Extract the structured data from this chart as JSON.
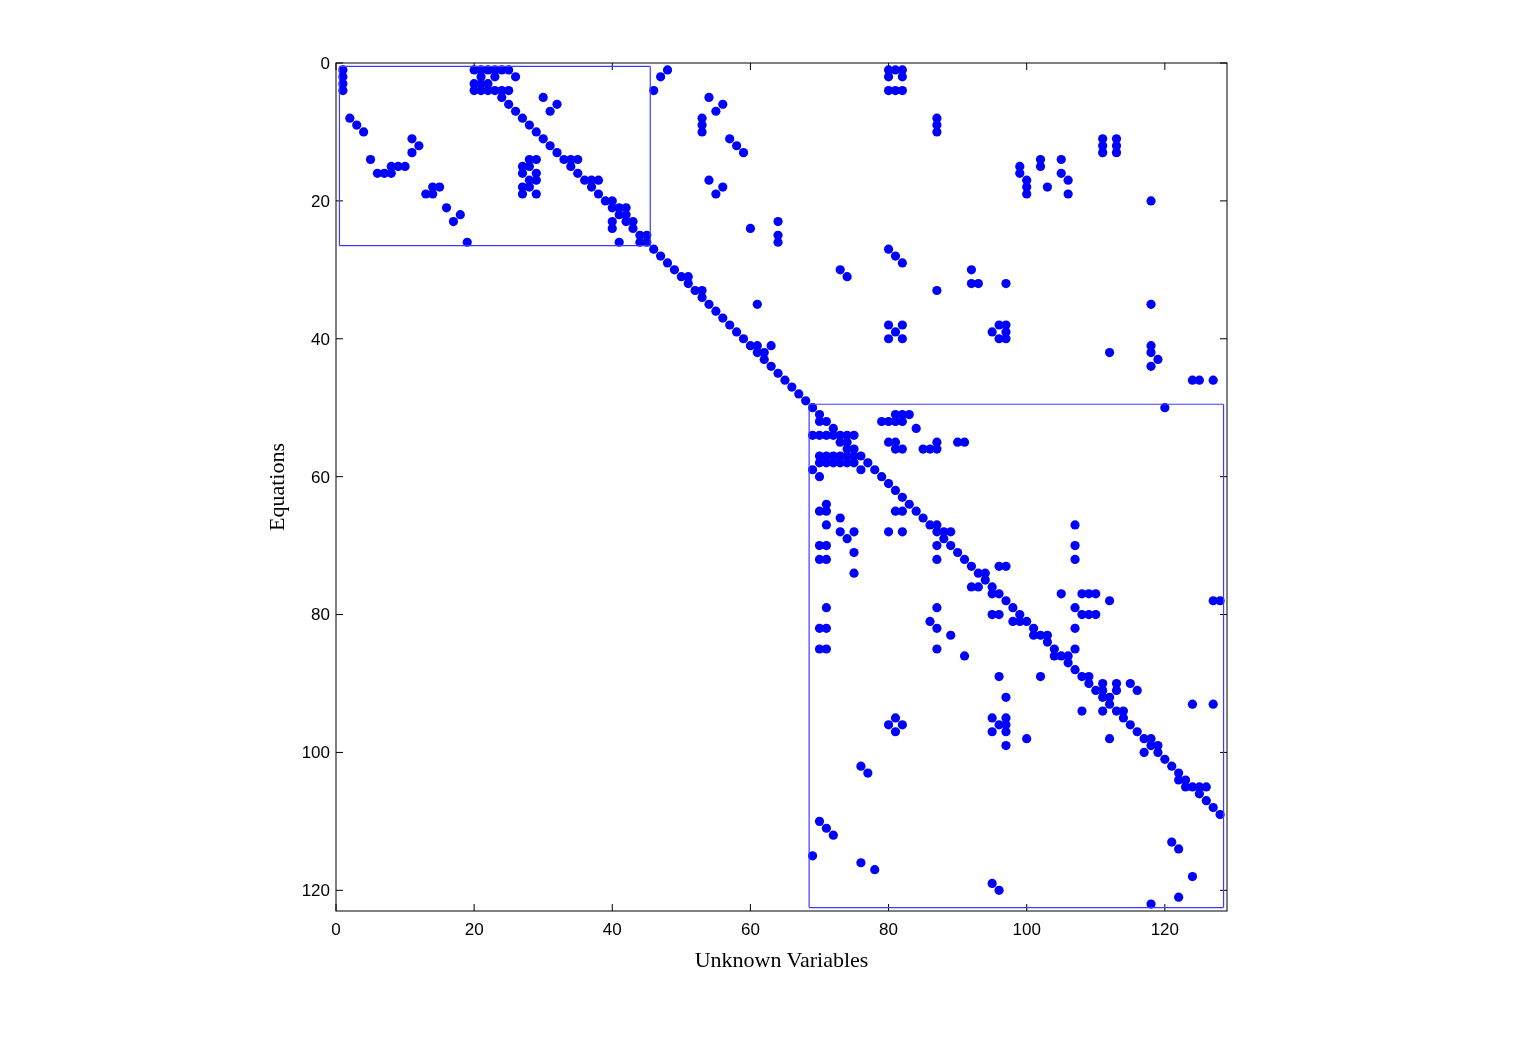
{
  "chart_data": {
    "type": "scatter",
    "xlabel": "Unknown Variables",
    "ylabel": "Equations",
    "xlim": [
      0,
      129
    ],
    "ylim": [
      123,
      0
    ],
    "xticks": [
      0,
      20,
      40,
      60,
      80,
      100,
      120
    ],
    "yticks": [
      0,
      20,
      40,
      60,
      80,
      100,
      120
    ],
    "series": [
      {
        "type": "scatter",
        "color": "#0000ff",
        "marker": "circle",
        "x": [
          1,
          20,
          21,
          22,
          23,
          24,
          25,
          48,
          80,
          81,
          82,
          1,
          21,
          23,
          26,
          47,
          80,
          82,
          1,
          20,
          21,
          22,
          1,
          20,
          21,
          22,
          23,
          24,
          25,
          46,
          80,
          81,
          82,
          24,
          30,
          54,
          25,
          32,
          56,
          26,
          31,
          55,
          2,
          27,
          53,
          87,
          3,
          28,
          53,
          87,
          4,
          29,
          53,
          87,
          11,
          30,
          57,
          111,
          113,
          12,
          31,
          58,
          111,
          113,
          11,
          32,
          59,
          111,
          113,
          5,
          28,
          29,
          33,
          34,
          35,
          102,
          105,
          8,
          9,
          10,
          27,
          28,
          34,
          99,
          102,
          6,
          7,
          8,
          27,
          29,
          35,
          99,
          105,
          28,
          29,
          36,
          37,
          38,
          54,
          100,
          106,
          14,
          15,
          27,
          28,
          37,
          56,
          100,
          103,
          13,
          14,
          27,
          29,
          38,
          55,
          100,
          106,
          39,
          40,
          118,
          16,
          40,
          41,
          42,
          18,
          41,
          42,
          17,
          40,
          42,
          43,
          64,
          40,
          43,
          60,
          44,
          45,
          64,
          19,
          41,
          44,
          45,
          64,
          46,
          80,
          47,
          81,
          48,
          82,
          49,
          73,
          92,
          50,
          51,
          74,
          51,
          92,
          93,
          97,
          52,
          53,
          87,
          53,
          54,
          61,
          118,
          55,
          56,
          57,
          80,
          82,
          96,
          97,
          58,
          81,
          95,
          97,
          59,
          80,
          82,
          96,
          97,
          60,
          61,
          63,
          118,
          61,
          62,
          112,
          118,
          62,
          119,
          63,
          118,
          64,
          65,
          124,
          125,
          127,
          66,
          67,
          68,
          69,
          120,
          70,
          81,
          82,
          83,
          70,
          71,
          79,
          80,
          81,
          82,
          72,
          84,
          69,
          70,
          71,
          72,
          73,
          74,
          75,
          73,
          74,
          80,
          81,
          87,
          90,
          91,
          74,
          75,
          81,
          82,
          85,
          86,
          87,
          70,
          71,
          72,
          73,
          74,
          75,
          76,
          70,
          71,
          72,
          73,
          74,
          75,
          77,
          69,
          76,
          78,
          70,
          79,
          80,
          81,
          82,
          71,
          83,
          70,
          71,
          81,
          82,
          84,
          73,
          85,
          71,
          86,
          87,
          107,
          73,
          75,
          80,
          82,
          87,
          88,
          89,
          74,
          88,
          70,
          71,
          87,
          89,
          107,
          75,
          90,
          70,
          71,
          87,
          91,
          107,
          92,
          96,
          97,
          75,
          93,
          94,
          94,
          92,
          93,
          95,
          95,
          96,
          105,
          108,
          109,
          110,
          97,
          112,
          127,
          128,
          71,
          87,
          98,
          107,
          95,
          96,
          99,
          108,
          109,
          110,
          86,
          98,
          99,
          100,
          70,
          71,
          87,
          101,
          107,
          89,
          101,
          102,
          103,
          103,
          70,
          71,
          87,
          104,
          107,
          91,
          104,
          105,
          106,
          106,
          107,
          96,
          102,
          108,
          109,
          109,
          111,
          113,
          115,
          110,
          111,
          113,
          116,
          97,
          111,
          112,
          112,
          124,
          127,
          108,
          111,
          113,
          114,
          81,
          95,
          97,
          114,
          80,
          82,
          96,
          97,
          115,
          81,
          95,
          97,
          116,
          100,
          112,
          117,
          118,
          97,
          118,
          119,
          117,
          119,
          120,
          76,
          121,
          77,
          122,
          122,
          123,
          123,
          124,
          125,
          126,
          125,
          126,
          127,
          128,
          70,
          71,
          72,
          121,
          122,
          69,
          76,
          78,
          124,
          95,
          96,
          122,
          118
        ],
        "values": [
          1,
          1,
          1,
          1,
          1,
          1,
          1,
          1,
          1,
          1,
          1,
          2,
          2,
          2,
          2,
          2,
          2,
          2,
          3,
          3,
          3,
          3,
          4,
          4,
          4,
          4,
          4,
          4,
          4,
          4,
          4,
          4,
          4,
          5,
          5,
          5,
          6,
          6,
          6,
          7,
          7,
          7,
          8,
          8,
          8,
          8,
          9,
          9,
          9,
          9,
          10,
          10,
          10,
          10,
          11,
          11,
          11,
          11,
          11,
          12,
          12,
          12,
          12,
          12,
          13,
          13,
          13,
          13,
          13,
          14,
          14,
          14,
          14,
          14,
          14,
          14,
          14,
          15,
          15,
          15,
          15,
          15,
          15,
          15,
          15,
          16,
          16,
          16,
          16,
          16,
          16,
          16,
          16,
          17,
          17,
          17,
          17,
          17,
          17,
          17,
          17,
          18,
          18,
          18,
          18,
          18,
          18,
          18,
          18,
          19,
          19,
          19,
          19,
          19,
          19,
          19,
          19,
          20,
          20,
          20,
          21,
          21,
          21,
          21,
          22,
          22,
          22,
          23,
          23,
          23,
          23,
          23,
          24,
          24,
          24,
          25,
          25,
          25,
          26,
          26,
          26,
          26,
          26,
          27,
          27,
          28,
          28,
          29,
          29,
          30,
          30,
          30,
          31,
          31,
          31,
          32,
          32,
          32,
          32,
          33,
          33,
          33,
          34,
          35,
          35,
          35,
          36,
          37,
          38,
          38,
          38,
          38,
          38,
          39,
          39,
          39,
          39,
          40,
          40,
          40,
          40,
          40,
          41,
          41,
          41,
          41,
          42,
          42,
          42,
          42,
          43,
          43,
          44,
          44,
          45,
          46,
          46,
          46,
          46,
          47,
          48,
          49,
          50,
          50,
          51,
          51,
          51,
          51,
          52,
          52,
          52,
          52,
          52,
          52,
          53,
          53,
          54,
          54,
          54,
          54,
          54,
          54,
          54,
          55,
          55,
          55,
          55,
          55,
          55,
          55,
          56,
          56,
          56,
          56,
          56,
          56,
          56,
          57,
          57,
          57,
          57,
          57,
          57,
          57,
          58,
          58,
          58,
          58,
          58,
          58,
          58,
          59,
          59,
          59,
          60,
          60,
          61,
          62,
          63,
          64,
          64,
          65,
          65,
          65,
          65,
          65,
          66,
          66,
          67,
          67,
          67,
          67,
          68,
          68,
          68,
          68,
          68,
          68,
          68,
          69,
          69,
          70,
          70,
          70,
          70,
          70,
          71,
          71,
          72,
          72,
          72,
          72,
          72,
          73,
          73,
          73,
          74,
          74,
          74,
          75,
          76,
          76,
          76,
          77,
          77,
          77,
          77,
          77,
          77,
          78,
          78,
          78,
          78,
          79,
          79,
          79,
          79,
          80,
          80,
          80,
          80,
          80,
          80,
          81,
          81,
          81,
          81,
          82,
          82,
          82,
          82,
          82,
          83,
          83,
          83,
          83,
          84,
          85,
          85,
          85,
          85,
          85,
          86,
          86,
          86,
          86,
          87,
          88,
          89,
          89,
          89,
          89,
          90,
          90,
          90,
          90,
          91,
          91,
          91,
          91,
          92,
          92,
          92,
          93,
          93,
          93,
          94,
          94,
          94,
          94,
          95,
          95,
          95,
          95,
          96,
          96,
          96,
          96,
          96,
          97,
          97,
          97,
          97,
          98,
          98,
          98,
          98,
          99,
          99,
          99,
          100,
          100,
          101,
          102,
          102,
          103,
          103,
          104,
          104,
          105,
          105,
          105,
          105,
          106,
          107,
          108,
          109,
          110,
          111,
          112,
          113,
          114,
          115,
          116,
          117,
          118,
          119,
          120,
          121,
          122
        ]
      },
      {
        "type": "line",
        "color": "#3c3cff",
        "line_style": "solid",
        "x": [
          0.5,
          45.5
        ],
        "values": [
          0.5,
          0.5
        ]
      },
      {
        "type": "line",
        "color": "#3c3cff",
        "line_style": "solid",
        "x": [
          0.5,
          45.5
        ],
        "values": [
          26.5,
          26.5
        ]
      },
      {
        "type": "line",
        "color": "#3c3cff",
        "line_style": "solid",
        "x": [
          0.5,
          0.5
        ],
        "values": [
          0.5,
          26.5
        ]
      },
      {
        "type": "line",
        "color": "#3c3cff",
        "line_style": "solid",
        "x": [
          45.5,
          45.5
        ],
        "values": [
          0.5,
          26.5
        ]
      },
      {
        "type": "line",
        "color": "#3c3cff",
        "line_style": "solid",
        "x": [
          68.5,
          128.5
        ],
        "values": [
          49.5,
          49.5
        ]
      },
      {
        "type": "line",
        "color": "#3c3cff",
        "line_style": "solid",
        "x": [
          68.5,
          128.5
        ],
        "values": [
          122.5,
          122.5
        ]
      },
      {
        "type": "line",
        "color": "#3c3cff",
        "line_style": "solid",
        "x": [
          68.5,
          68.5
        ],
        "values": [
          49.5,
          122.5
        ]
      },
      {
        "type": "line",
        "color": "#3c3cff",
        "line_style": "solid",
        "x": [
          128.5,
          128.5
        ],
        "values": [
          49.5,
          122.5
        ]
      }
    ]
  }
}
